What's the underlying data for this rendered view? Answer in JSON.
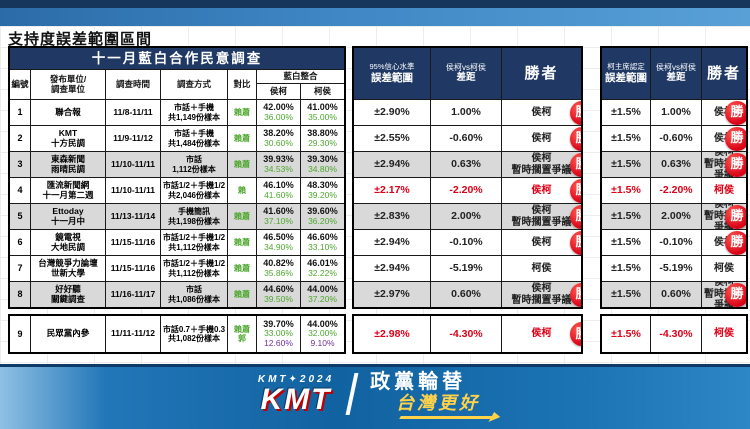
{
  "page_title": "支持度誤差範圍區間",
  "badge_label": "勝",
  "colors": {
    "header_navy": "#1F3864",
    "win_red": "#DD0017",
    "green": "#4EA72E",
    "purple": "#7030A0",
    "row_gray": "#D9D9D9",
    "band_blue": "#1668A8",
    "gold": "#FFD24A"
  },
  "main_table": {
    "title": "十一月藍白合作民意調查",
    "col_id": "編號",
    "col_org1": "發布單位/",
    "col_org2": "調查單位",
    "col_time": "調查時間",
    "col_method": "調查方式",
    "col_vs": "對比",
    "col_merge": "藍白整合",
    "col_hk": "侯柯",
    "col_kh": "柯侯",
    "rows": [
      {
        "id": "1",
        "org": "聯合報",
        "org2": "",
        "time": "11/8-11/11",
        "method": "市話＋手機",
        "sample": "共1,149份樣本",
        "vs": "賴蕭",
        "vs2": "",
        "hk": "42.00%",
        "kh": "41.00%",
        "hk2": "36.00%",
        "kh2": "35.00%",
        "hk3": "",
        "kh3": "",
        "gray": false
      },
      {
        "id": "2",
        "org": "KMT",
        "org2": "十方民調",
        "time": "11/9-11/12",
        "method": "市話＋手機",
        "sample": "共1,484份樣本",
        "vs": "賴蕭",
        "vs2": "",
        "hk": "38.20%",
        "kh": "38.80%",
        "hk2": "30.60%",
        "kh2": "29.30%",
        "hk3": "",
        "kh3": "",
        "gray": false
      },
      {
        "id": "3",
        "org": "東森新聞",
        "org2": "雨晴民調",
        "time": "11/10-11/11",
        "method": "市話",
        "sample": "1,112份樣本",
        "vs": "賴蕭",
        "vs2": "",
        "hk": "39.93%",
        "kh": "39.30%",
        "hk2": "34.53%",
        "kh2": "34.80%",
        "hk3": "",
        "kh3": "",
        "gray": true
      },
      {
        "id": "4",
        "org": "匯流新聞網",
        "org2": "十一月第二週",
        "time": "11/10-11/11",
        "method": "市話1/2＋手機1/2",
        "sample": "共2,046份樣本",
        "vs": "賴",
        "vs2": "",
        "hk": "46.10%",
        "kh": "48.30%",
        "hk2": "41.60%",
        "kh2": "39.20%",
        "hk3": "",
        "kh3": "",
        "gray": false
      },
      {
        "id": "5",
        "org": "Ettoday",
        "org2": "十一月中",
        "time": "11/13-11/14",
        "method": "手機簡訊",
        "sample": "共1,198份樣本",
        "vs": "賴蕭",
        "vs2": "",
        "hk": "41.60%",
        "kh": "39.60%",
        "hk2": "37.10%",
        "kh2": "36.20%",
        "hk3": "",
        "kh3": "",
        "gray": true
      },
      {
        "id": "6",
        "org": "鏡電視",
        "org2": "大地民調",
        "time": "11/15-11/16",
        "method": "市話1/2＋手機1/2",
        "sample": "共1,112份樣本",
        "vs": "賴蕭",
        "vs2": "",
        "hk": "46.50%",
        "kh": "46.60%",
        "hk2": "34.90%",
        "kh2": "33.10%",
        "hk3": "",
        "kh3": "",
        "gray": false
      },
      {
        "id": "7",
        "org": "台灣競爭力論壇",
        "org2": "世新大學",
        "time": "11/15-11/16",
        "method": "市話1/2＋手機1/2",
        "sample": "共1,112份樣本",
        "vs": "賴蕭",
        "vs2": "",
        "hk": "40.82%",
        "kh": "46.01%",
        "hk2": "35.86%",
        "kh2": "32.22%",
        "hk3": "",
        "kh3": "",
        "gray": false
      },
      {
        "id": "8",
        "org": "好好聽",
        "org2": "關鍵調查",
        "time": "11/16-11/17",
        "method": "市話",
        "sample": "共1,086份樣本",
        "vs": "賴蕭",
        "vs2": "",
        "hk": "44.60%",
        "kh": "44.00%",
        "hk2": "39.50%",
        "kh2": "37.20%",
        "hk3": "",
        "kh3": "",
        "gray": true
      },
      {
        "id": "9",
        "org": "民眾黨內參",
        "org2": "",
        "time": "11/11-11/12",
        "method": "市話0.7＋手機0.3",
        "sample": "共1,082份樣本",
        "vs": "賴蕭",
        "vs2": "郭",
        "hk": "39.70%",
        "kh": "44.00%",
        "hk2": "33.00%",
        "kh2": "32.00%",
        "hk3": "12.60%",
        "kh3": "9.10%",
        "gray": false
      }
    ]
  },
  "ci_block": {
    "h1a": "95%信心水準",
    "h1b": "誤差範圍",
    "h2a": "侯柯vs柯侯",
    "h2b": "差距",
    "h3": "勝者",
    "rows": [
      {
        "moe": "±2.90%",
        "diff": "1.00%",
        "winner": "侯柯",
        "sub": "",
        "badge": true,
        "red": false
      },
      {
        "moe": "±2.55%",
        "diff": "-0.60%",
        "winner": "侯柯",
        "sub": "",
        "badge": true,
        "red": false
      },
      {
        "moe": "±2.94%",
        "diff": "0.63%",
        "winner": "侯柯",
        "sub": "暫時擱置爭議",
        "badge": true,
        "red": false
      },
      {
        "moe": "±2.17%",
        "diff": "-2.20%",
        "winner": "侯柯",
        "sub": "",
        "badge": true,
        "red": true
      },
      {
        "moe": "±2.83%",
        "diff": "2.00%",
        "winner": "侯柯",
        "sub": "暫時擱置爭議",
        "badge": true,
        "red": false
      },
      {
        "moe": "±2.94%",
        "diff": "-0.10%",
        "winner": "侯柯",
        "sub": "",
        "badge": true,
        "red": false
      },
      {
        "moe": "±2.94%",
        "diff": "-5.19%",
        "winner": "柯侯",
        "sub": "",
        "badge": false,
        "red": false
      },
      {
        "moe": "±2.97%",
        "diff": "0.60%",
        "winner": "侯柯",
        "sub": "暫時擱置爭議",
        "badge": true,
        "red": false
      },
      {
        "moe": "±2.98%",
        "diff": "-4.30%",
        "winner": "侯柯",
        "sub": "",
        "badge": true,
        "red": true
      }
    ]
  },
  "ko_block": {
    "h1a": "柯主席認定",
    "h1b": "誤差範圍",
    "h2a": "侯柯vs柯侯",
    "h2b": "差距",
    "h3": "勝者",
    "rows": [
      {
        "moe": "±1.5%",
        "diff": "1.00%",
        "winner": "侯柯",
        "sub": "",
        "badge": true,
        "red": false
      },
      {
        "moe": "±1.5%",
        "diff": "-0.60%",
        "winner": "侯柯",
        "sub": "",
        "badge": true,
        "red": false
      },
      {
        "moe": "±1.5%",
        "diff": "0.63%",
        "winner": "侯柯",
        "sub": "暫時擱置爭議",
        "badge": true,
        "red": false
      },
      {
        "moe": "±1.5%",
        "diff": "-2.20%",
        "winner": "柯侯",
        "sub": "",
        "badge": false,
        "red": true
      },
      {
        "moe": "±1.5%",
        "diff": "2.00%",
        "winner": "侯柯",
        "sub": "暫時擱置爭議",
        "badge": true,
        "red": false
      },
      {
        "moe": "±1.5%",
        "diff": "-0.10%",
        "winner": "侯柯",
        "sub": "",
        "badge": true,
        "red": false
      },
      {
        "moe": "±1.5%",
        "diff": "-5.19%",
        "winner": "柯侯",
        "sub": "",
        "badge": false,
        "red": false
      },
      {
        "moe": "±1.5%",
        "diff": "0.60%",
        "winner": "侯柯",
        "sub": "暫時擱置爭議",
        "badge": true,
        "red": false
      },
      {
        "moe": "±1.5%",
        "diff": "-4.30%",
        "winner": "柯侯",
        "sub": "",
        "badge": false,
        "red": true
      }
    ]
  },
  "footer": {
    "brand_small": "KMT✦2024",
    "brand_big": "KMT",
    "slogan_white": "政黨輪替",
    "slogan_gold": "台灣更好"
  }
}
